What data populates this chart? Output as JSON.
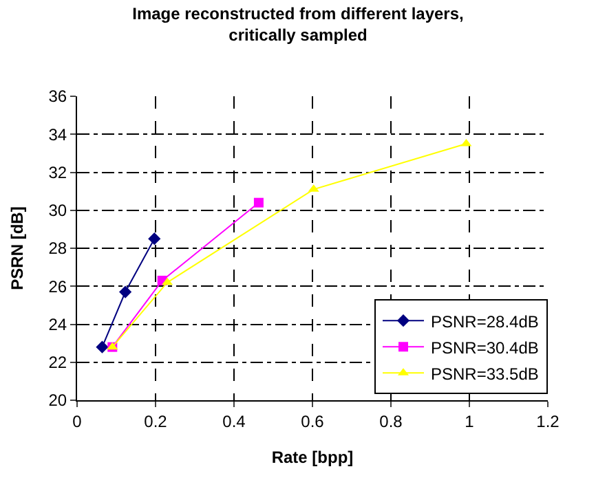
{
  "chart_data": {
    "type": "line",
    "title": "Image reconstructed from different layers,\ncritically sampled",
    "xlabel": "Rate [bpp]",
    "ylabel": "PSRN [dB]",
    "xlim": [
      0,
      1.2
    ],
    "xticks": [
      0,
      0.2,
      0.4,
      0.6,
      0.8,
      1,
      1.2
    ],
    "ylim": [
      20,
      36
    ],
    "yticks": [
      20,
      22,
      24,
      26,
      28,
      30,
      32,
      34,
      36
    ],
    "grid": true,
    "legend": "bottom right",
    "series": [
      {
        "name": "PSNR=28.4dB",
        "color": "#000080",
        "marker": "diamond",
        "x": [
          0.064,
          0.123,
          0.197
        ],
        "values": [
          22.8,
          25.7,
          28.5
        ]
      },
      {
        "name": "PSNR=30.4dB",
        "color": "#ff00ff",
        "marker": "square",
        "x": [
          0.09,
          0.217,
          0.463
        ],
        "values": [
          22.8,
          26.3,
          30.4
        ]
      },
      {
        "name": "PSNR=33.5dB",
        "color": "#ffff00",
        "marker": "triangle",
        "x": [
          0.09,
          0.23,
          0.603,
          0.992
        ],
        "values": [
          22.8,
          26.2,
          31.1,
          33.5
        ]
      }
    ]
  }
}
